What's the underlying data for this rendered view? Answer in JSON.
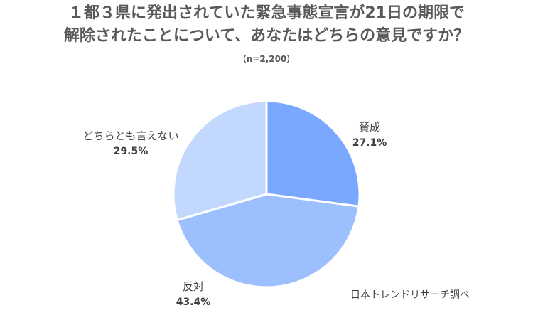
{
  "chart_data": {
    "type": "pie",
    "title": [
      "１都３県に発出されていた緊急事態宣言が21日の期限で",
      "解除されたことについて、あなたはどちらの意見ですか？"
    ],
    "subtitle": "（n=2,200）",
    "slices": [
      {
        "label": "賛成",
        "value": 27.1,
        "value_label": "27.1%",
        "color": "#7aa8ff"
      },
      {
        "label": "反対",
        "value": 43.4,
        "value_label": "43.4%",
        "color": "#9cbffd"
      },
      {
        "label": "どちらとも言えない",
        "value": 29.5,
        "value_label": "29.5%",
        "color": "#c3d8ff"
      }
    ],
    "start": "12 o'clock",
    "direction": "clockwise",
    "source": "日本トレンドリサーチ調べ"
  }
}
